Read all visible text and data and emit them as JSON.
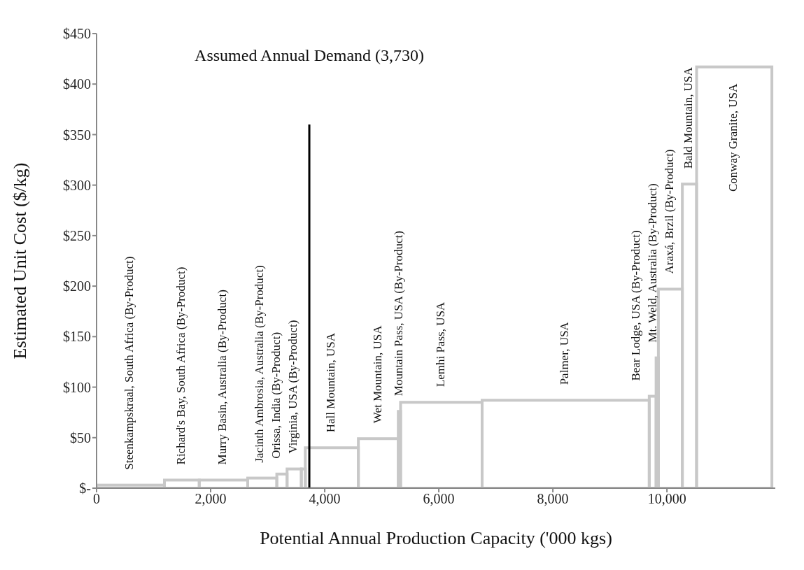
{
  "chart_data": {
    "type": "histogram",
    "xlabel": "Potential Annual Production Capacity ('000 kgs)",
    "ylabel": "Estimated Unit Cost ($/kg)",
    "bins": [
      0,
      1190,
      1800,
      2650,
      3160,
      3340,
      3590,
      3660,
      4590,
      5290,
      5330,
      6760,
      9690,
      9810,
      9850,
      10270,
      10520,
      11840
    ],
    "values": [
      3,
      8,
      8,
      10,
      14,
      19,
      19,
      40,
      49,
      76,
      85,
      87,
      91,
      129,
      197,
      301,
      417
    ],
    "color": "#c8c8c8",
    "xlim": [
      0,
      11900
    ],
    "xticks": [
      0,
      {
        "value": 2000,
        "label": "2,000"
      },
      {
        "value": 4000,
        "label": "4,000"
      },
      {
        "value": 6000,
        "label": "6,000"
      },
      {
        "value": 8000,
        "label": "8,000"
      },
      {
        "value": 10000,
        "label": "10,000"
      }
    ],
    "ylim": [
      0,
      450
    ],
    "yticks": [
      {
        "value": 0,
        "label": "$-"
      },
      {
        "value": 50,
        "label": "$50"
      },
      {
        "value": 100,
        "label": "$100"
      },
      {
        "value": 150,
        "label": "$150"
      },
      {
        "value": 200,
        "label": "$200"
      },
      {
        "value": 250,
        "label": "$250"
      },
      {
        "value": 300,
        "label": "$300"
      },
      {
        "value": 350,
        "label": "$350"
      },
      {
        "value": 400,
        "label": "$400"
      },
      {
        "value": 450,
        "label": "$450"
      }
    ],
    "ref_lines": [
      {
        "axis": "x",
        "value": 3730,
        "label": "Assumed Annual Demand (3,730)",
        "color": "#000000"
      }
    ],
    "annotations": [
      {
        "text": "Steenkampskraal, South Africa (By-Product)",
        "x": 595,
        "y": 3
      },
      {
        "text": "Richard's Bay, South Africa (By-Product)",
        "x": 1495,
        "y": 8
      },
      {
        "text": "Murry Basin, Australia (By-Product)",
        "x": 2225,
        "y": 8
      },
      {
        "text": "Jacinth Ambrosia, Australia (By-Product)",
        "x": 2905,
        "y": 10
      },
      {
        "text": "Orissa, India (By-Product)",
        "x": 3250,
        "y": 14
      },
      {
        "text": "Virginia, USA (By-Product)",
        "x": 3465,
        "y": 19
      },
      {
        "text": "Hall Mountain, USA",
        "x": 4125,
        "y": 40
      },
      {
        "text": "Wet Mountain, USA",
        "x": 4940,
        "y": 49
      },
      {
        "text": "Mountain Pass, USA (By-Product)",
        "x": 5310,
        "y": 76
      },
      {
        "text": "Lemhi Pass, USA",
        "x": 6045,
        "y": 85
      },
      {
        "text": "Palmer, USA",
        "x": 8225,
        "y": 87
      },
      {
        "text": "Bear Lodge, USA (By-Product)",
        "x": 9750,
        "y": 91
      },
      {
        "text": "Mt. Weld, Australia (By-Product)",
        "x": 9830,
        "y": 129
      },
      {
        "text": "Araxá, Brzil (By-Product)",
        "x": 10060,
        "y": 197
      },
      {
        "text": "Bald Mountain, USA",
        "x": 10395,
        "y": 301
      },
      {
        "text": "Conway Granite, USA",
        "x": 11180,
        "y": 417
      }
    ]
  }
}
